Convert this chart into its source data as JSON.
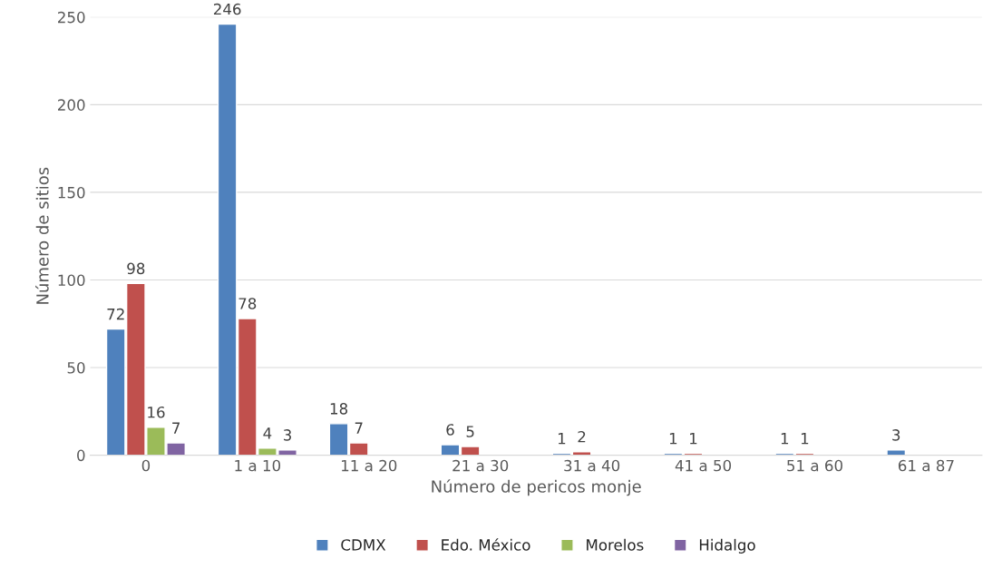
{
  "chart_data": {
    "type": "bar",
    "xlabel": "Número de pericos monje",
    "ylabel": "Número de sitios",
    "categories": [
      "0",
      "1 a 10",
      "11 a 20",
      "21 a 30",
      "31 a 40",
      "41 a 50",
      "51 a 60",
      "61 a 87"
    ],
    "series": [
      {
        "name": "CDMX",
        "color": "#4f81bd",
        "values": [
          72,
          246,
          18,
          6,
          1,
          1,
          1,
          3
        ],
        "value_labels": [
          "72",
          "246",
          "18",
          "6",
          "1",
          "1",
          "1",
          "3"
        ]
      },
      {
        "name": "Edo. México",
        "color": "#c0504d",
        "values": [
          98,
          78,
          7,
          5,
          2,
          1,
          1,
          null
        ],
        "value_labels": [
          "98",
          "78",
          "7",
          "5",
          "2",
          "1",
          "1",
          null
        ]
      },
      {
        "name": "Morelos",
        "color": "#9bbb59",
        "values": [
          16,
          4,
          null,
          null,
          null,
          null,
          null,
          null
        ],
        "value_labels": [
          "16",
          "4",
          null,
          null,
          null,
          null,
          null,
          null
        ]
      },
      {
        "name": "Hidalgo",
        "color": "#8064a2",
        "values": [
          7,
          3,
          null,
          null,
          null,
          null,
          null,
          null
        ],
        "value_labels": [
          "7",
          "3",
          null,
          null,
          null,
          null,
          null,
          null
        ]
      }
    ],
    "ylim": [
      0,
      250
    ],
    "yticks": [
      0,
      50,
      100,
      150,
      200,
      250
    ],
    "grid": "y",
    "legend": "bottom"
  }
}
